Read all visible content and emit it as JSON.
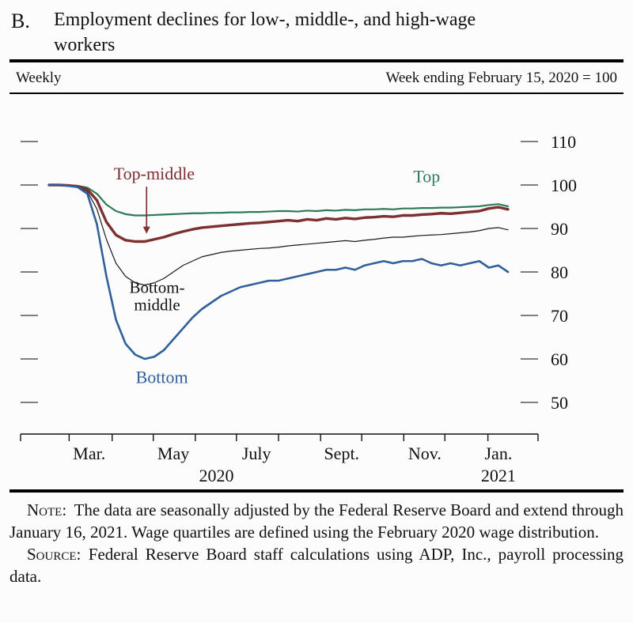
{
  "header": {
    "panel_letter": "B.",
    "title": "Employment declines for low-, middle-, and high-wage workers"
  },
  "subheader": {
    "left": "Weekly",
    "right": "Week ending February 15, 2020 = 100"
  },
  "chart_data": {
    "type": "line",
    "title": "Employment declines for low-, middle-, and high-wage workers",
    "frequency": "Weekly",
    "index_note": "Week ending February 15, 2020 = 100",
    "x_unit": "weeks since week ending February 15, 2020",
    "weeks_total": 48,
    "ylim": [
      44,
      114
    ],
    "grid": false,
    "y_ticks": [
      50,
      60,
      70,
      80,
      90,
      100,
      110
    ],
    "month_tick_weeks": [
      2.1,
      6.6,
      10.9,
      15.3,
      19.6,
      24.0,
      28.4,
      32.7,
      37.1,
      41.4,
      45.9
    ],
    "x_labels": [
      {
        "label": "Mar.",
        "week": 4.2
      },
      {
        "label": "May",
        "week": 13.0
      },
      {
        "label": "July",
        "week": 21.7
      },
      {
        "label": "Sept.",
        "week": 30.6
      },
      {
        "label": "Nov.",
        "week": 39.3
      },
      {
        "label": "Jan.",
        "week": 47.0
      }
    ],
    "year_labels": [
      {
        "label": "2020",
        "week": 17.5
      },
      {
        "label": "2021",
        "week": 47.0
      }
    ],
    "series": [
      {
        "name": "Bottom-middle",
        "color": "#1a1a1a",
        "width": 1.2,
        "values": [
          100,
          100,
          99.8,
          99.5,
          98.5,
          94.5,
          87.5,
          82.0,
          79.0,
          77.5,
          77.0,
          77.5,
          78.5,
          80.0,
          81.5,
          82.5,
          83.5,
          84.0,
          84.5,
          84.8,
          85.0,
          85.2,
          85.4,
          85.5,
          85.7,
          86.0,
          86.2,
          86.4,
          86.6,
          86.8,
          87.0,
          87.2,
          87.0,
          87.3,
          87.5,
          87.8,
          88.0,
          88.0,
          88.2,
          88.4,
          88.5,
          88.6,
          88.8,
          89.0,
          89.2,
          89.5,
          90.0,
          90.2,
          89.7
        ]
      },
      {
        "name": "Top",
        "color": "#2e7a56",
        "width": 2.2,
        "values": [
          100,
          100,
          99.9,
          99.8,
          99.4,
          98.0,
          95.5,
          94.0,
          93.3,
          93.0,
          93.0,
          93.1,
          93.2,
          93.3,
          93.4,
          93.5,
          93.5,
          93.6,
          93.6,
          93.7,
          93.7,
          93.8,
          93.8,
          93.9,
          94.0,
          94.0,
          93.9,
          94.1,
          94.0,
          94.2,
          94.1,
          94.3,
          94.2,
          94.4,
          94.4,
          94.5,
          94.4,
          94.6,
          94.6,
          94.7,
          94.7,
          94.8,
          94.8,
          94.9,
          95.0,
          95.1,
          95.4,
          95.6,
          95.1
        ]
      },
      {
        "name": "Top-middle",
        "color": "#7e2f2f",
        "width": 3.4,
        "values": [
          100,
          100,
          99.9,
          99.7,
          99.0,
          96.5,
          91.5,
          88.5,
          87.3,
          87.0,
          87.0,
          87.5,
          88.0,
          88.7,
          89.3,
          89.8,
          90.2,
          90.4,
          90.6,
          90.8,
          91.0,
          91.2,
          91.3,
          91.5,
          91.7,
          91.9,
          91.7,
          92.1,
          91.9,
          92.3,
          92.1,
          92.4,
          92.2,
          92.5,
          92.6,
          92.8,
          92.7,
          93.0,
          93.0,
          93.2,
          93.3,
          93.5,
          93.4,
          93.6,
          93.8,
          94.0,
          94.6,
          94.9,
          94.4
        ]
      },
      {
        "name": "Bottom",
        "color": "#2f6099",
        "width": 2.6,
        "values": [
          100,
          100,
          99.8,
          99.5,
          98.0,
          91.0,
          79.0,
          69.0,
          63.5,
          61.0,
          60.0,
          60.5,
          62.0,
          64.5,
          67.0,
          69.5,
          71.5,
          73.0,
          74.5,
          75.5,
          76.5,
          77.0,
          77.5,
          78.0,
          78.0,
          78.5,
          79.0,
          79.5,
          80.0,
          80.5,
          80.5,
          81.0,
          80.5,
          81.5,
          82.0,
          82.5,
          82.0,
          82.5,
          82.5,
          83.0,
          82.0,
          81.5,
          82.0,
          81.5,
          82.0,
          82.5,
          81.0,
          81.5,
          80.0
        ]
      }
    ],
    "annotations": [
      {
        "id": "top-middle-label",
        "lines": [
          "Top-middle"
        ],
        "week": 11.0,
        "value": 101.3,
        "color": "#7e2f2f",
        "font_size": 22,
        "arrow": {
          "week": 10.2,
          "from": 99.6,
          "to": 88.8
        }
      },
      {
        "id": "top-label",
        "lines": [
          "Top"
        ],
        "week": 39.5,
        "value": 100.6,
        "color": "#2e7a56",
        "font_size": 22
      },
      {
        "id": "bottom-middle-label",
        "lines": [
          "Bottom-",
          "middle"
        ],
        "week": 11.3,
        "value": 75.2,
        "color": "#111111",
        "font_size": 21
      },
      {
        "id": "bottom-label",
        "lines": [
          "Bottom"
        ],
        "week": 11.8,
        "value": 54.5,
        "color": "#2f6099",
        "font_size": 22
      }
    ]
  },
  "footer": {
    "note_label": "Note:",
    "note_text": "The data are seasonally adjusted by the Federal Reserve Board and extend through January 16, 2021. Wage quartiles are defined using the February 2020 wage distribution.",
    "source_label": "Source:",
    "source_text": "Federal Reserve Board staff calculations using ADP, Inc., payroll processing data."
  }
}
